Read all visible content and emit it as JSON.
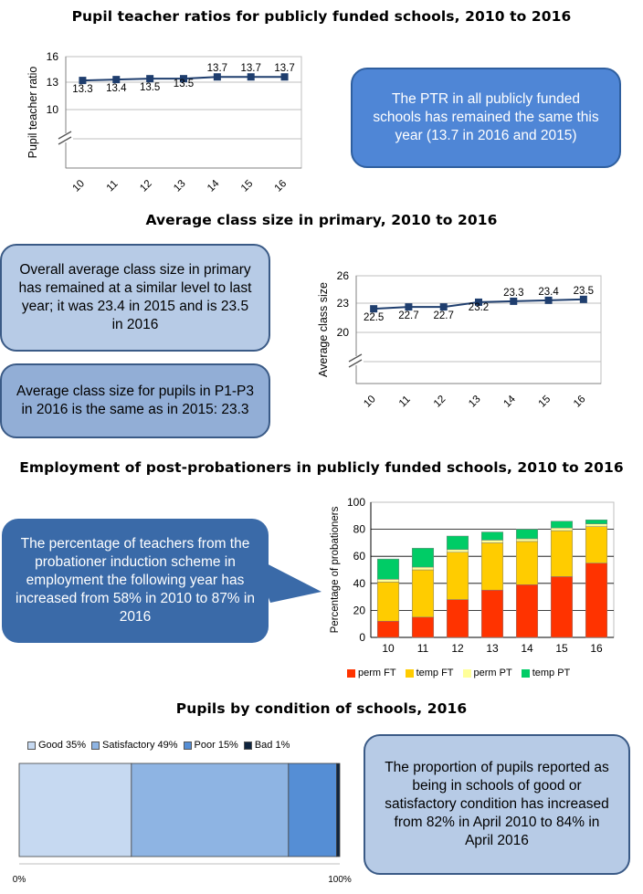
{
  "sections": {
    "ptr_title": "Pupil teacher ratios for publicly funded schools, 2010 to 2016",
    "class_title": "Average class size in primary, 2010 to 2016",
    "employment_title": "Employment of post-probationers  in publicly funded schools, 2010 to 2016",
    "condition_title": "Pupils by condition of schools, 2016"
  },
  "callouts": {
    "ptr": "The PTR in all publicly funded schools has remained the same this year (13.7 in 2016 and 2015)",
    "class_overall": "Overall average class size in primary has remained at a similar level to last year; it was 23.4 in 2015 and is 23.5 in 2016",
    "class_p1p3": "Average class size for pupils in P1-P3 in 2016 is the same as in 2015: 23.3",
    "employment": "The percentage of teachers from the probationer induction scheme in employment the following year has increased from 58% in 2010 to 87% in 2016",
    "condition": "The proportion of pupils reported as being in schools of good or satisfactory condition has increased from 82% in April 2010 to 84% in April 2016"
  },
  "colors": {
    "line": "#1f3e6e",
    "perm_ft": "#ff3300",
    "temp_ft": "#ffcc00",
    "perm_pt": "#ffff99",
    "temp_pt": "#00cc66",
    "good": "#c6d9f1",
    "satisfactory": "#8eb4e3",
    "poor": "#558ed5",
    "bad": "#0f243e"
  },
  "chart_data": [
    {
      "type": "line",
      "title": "Pupil teacher ratios for publicly funded schools, 2010 to 2016",
      "ylabel": "Pupil teacher ratio",
      "xlabel": "",
      "categories": [
        "10",
        "11",
        "12",
        "13",
        "14",
        "15",
        "16"
      ],
      "values": [
        13.3,
        13.4,
        13.5,
        13.5,
        13.7,
        13.7,
        13.7
      ],
      "data_labels": [
        "13.3",
        "13.4",
        "13.5",
        "13.5",
        "13.7",
        "13.7",
        "13.7"
      ],
      "yticks": [
        "16",
        "13",
        "10"
      ],
      "ylim": [
        10,
        16
      ],
      "axis_break": true,
      "grid": true
    },
    {
      "type": "line",
      "title": "Average class size in primary, 2010 to 2016",
      "ylabel": "Average class size",
      "xlabel": "",
      "categories": [
        "10",
        "11",
        "12",
        "13",
        "14",
        "15",
        "16"
      ],
      "values": [
        22.5,
        22.7,
        22.7,
        23.2,
        23.3,
        23.4,
        23.5
      ],
      "data_labels": [
        "22.5",
        "22.7",
        "22.7",
        "23.2",
        "23.3",
        "23.4",
        "23.5"
      ],
      "yticks": [
        "26",
        "23",
        "20"
      ],
      "ylim": [
        20,
        26
      ],
      "axis_break": true,
      "grid": true
    },
    {
      "type": "bar",
      "stacked": true,
      "title": "Employment of post-probationers  in publicly funded schools, 2010 to 2016",
      "ylabel": "Percentage of probationers",
      "xlabel": "",
      "categories": [
        "10",
        "11",
        "12",
        "13",
        "14",
        "15",
        "16"
      ],
      "ylim": [
        0,
        100
      ],
      "yticks": [
        "0",
        "20",
        "40",
        "60",
        "80",
        "100"
      ],
      "legend": "bottom",
      "series": [
        {
          "name": "perm FT",
          "values": [
            12,
            15,
            28,
            35,
            39,
            45,
            55
          ]
        },
        {
          "name": "temp FT",
          "values": [
            29,
            35,
            35,
            35,
            32,
            34,
            27
          ]
        },
        {
          "name": "perm PT",
          "values": [
            2,
            2,
            2,
            2,
            2,
            2,
            2
          ]
        },
        {
          "name": "temp PT",
          "values": [
            15,
            14,
            10,
            6,
            7,
            5,
            3
          ]
        }
      ]
    },
    {
      "type": "bar",
      "stacked": true,
      "orientation": "horizontal",
      "title": "Pupils by condition of schools, 2016",
      "xlabel": "",
      "ylabel": "",
      "axis_labels": [
        "0%",
        "100%"
      ],
      "legend": "top",
      "series": [
        {
          "name": "Good 35%",
          "values": [
            35
          ]
        },
        {
          "name": "Satisfactory 49%",
          "values": [
            49
          ]
        },
        {
          "name": "Poor 15%",
          "values": [
            15
          ]
        },
        {
          "name": "Bad 1%",
          "values": [
            1
          ]
        }
      ]
    }
  ]
}
